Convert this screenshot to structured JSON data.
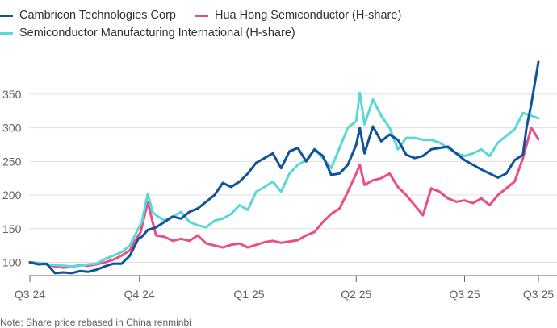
{
  "chart_data": {
    "type": "line",
    "title": "",
    "xlabel": "",
    "ylabel": "",
    "ylim": [
      80,
      400
    ],
    "y_ticks": [
      100,
      150,
      200,
      250,
      300,
      350
    ],
    "x_ticks": [
      "Q3 24",
      "Q4 24",
      "Q1 25",
      "Q2 25",
      "Q3 25",
      "Q3 25"
    ],
    "x_range": [
      "2024-07-01",
      "2025-09-01"
    ],
    "grid": true,
    "legend_placement": "top-left",
    "series": [
      {
        "name": "Cambricon Technologies Corp",
        "color": "#0f5499",
        "points": [
          [
            "2024-07-01",
            100
          ],
          [
            "2024-07-08",
            97
          ],
          [
            "2024-07-15",
            98
          ],
          [
            "2024-07-22",
            84
          ],
          [
            "2024-07-29",
            85
          ],
          [
            "2024-08-05",
            84
          ],
          [
            "2024-08-12",
            87
          ],
          [
            "2024-08-19",
            86
          ],
          [
            "2024-08-26",
            89
          ],
          [
            "2024-09-02",
            94
          ],
          [
            "2024-09-09",
            98
          ],
          [
            "2024-09-16",
            98
          ],
          [
            "2024-09-23",
            110
          ],
          [
            "2024-09-30",
            135
          ],
          [
            "2024-10-03",
            138
          ],
          [
            "2024-10-08",
            148
          ],
          [
            "2024-10-15",
            152
          ],
          [
            "2024-10-22",
            160
          ],
          [
            "2024-10-29",
            168
          ],
          [
            "2024-11-05",
            165
          ],
          [
            "2024-11-12",
            175
          ],
          [
            "2024-11-19",
            180
          ],
          [
            "2024-11-26",
            190
          ],
          [
            "2024-12-03",
            200
          ],
          [
            "2024-12-10",
            218
          ],
          [
            "2024-12-17",
            212
          ],
          [
            "2024-12-24",
            220
          ],
          [
            "2024-12-31",
            232
          ],
          [
            "2025-01-07",
            248
          ],
          [
            "2025-01-14",
            255
          ],
          [
            "2025-01-21",
            262
          ],
          [
            "2025-01-28",
            240
          ],
          [
            "2025-02-04",
            265
          ],
          [
            "2025-02-11",
            270
          ],
          [
            "2025-02-18",
            250
          ],
          [
            "2025-02-25",
            268
          ],
          [
            "2025-03-04",
            258
          ],
          [
            "2025-03-11",
            230
          ],
          [
            "2025-03-18",
            232
          ],
          [
            "2025-03-25",
            245
          ],
          [
            "2025-04-01",
            275
          ],
          [
            "2025-04-04",
            300
          ],
          [
            "2025-04-08",
            262
          ],
          [
            "2025-04-15",
            302
          ],
          [
            "2025-04-22",
            280
          ],
          [
            "2025-04-29",
            290
          ],
          [
            "2025-05-06",
            282
          ],
          [
            "2025-05-13",
            260
          ],
          [
            "2025-05-20",
            255
          ],
          [
            "2025-05-27",
            258
          ],
          [
            "2025-06-03",
            268
          ],
          [
            "2025-06-10",
            270
          ],
          [
            "2025-06-17",
            272
          ],
          [
            "2025-06-24",
            262
          ],
          [
            "2025-07-01",
            252
          ],
          [
            "2025-07-08",
            245
          ],
          [
            "2025-07-15",
            238
          ],
          [
            "2025-07-22",
            232
          ],
          [
            "2025-07-29",
            226
          ],
          [
            "2025-08-05",
            232
          ],
          [
            "2025-08-12",
            252
          ],
          [
            "2025-08-19",
            260
          ],
          [
            "2025-08-22",
            300
          ],
          [
            "2025-08-26",
            335
          ],
          [
            "2025-09-01",
            398
          ]
        ]
      },
      {
        "name": "Hua Hong Semiconductor (H-share)",
        "color": "#e94e87",
        "points": [
          [
            "2024-07-01",
            100
          ],
          [
            "2024-07-08",
            99
          ],
          [
            "2024-07-15",
            97
          ],
          [
            "2024-07-22",
            94
          ],
          [
            "2024-07-29",
            92
          ],
          [
            "2024-08-05",
            93
          ],
          [
            "2024-08-12",
            96
          ],
          [
            "2024-08-19",
            95
          ],
          [
            "2024-08-26",
            97
          ],
          [
            "2024-09-02",
            100
          ],
          [
            "2024-09-09",
            104
          ],
          [
            "2024-09-16",
            110
          ],
          [
            "2024-09-23",
            118
          ],
          [
            "2024-09-26",
            128
          ],
          [
            "2024-10-02",
            145
          ],
          [
            "2024-10-08",
            190
          ],
          [
            "2024-10-12",
            160
          ],
          [
            "2024-10-15",
            140
          ],
          [
            "2024-10-22",
            138
          ],
          [
            "2024-10-29",
            132
          ],
          [
            "2024-11-05",
            135
          ],
          [
            "2024-11-12",
            132
          ],
          [
            "2024-11-19",
            140
          ],
          [
            "2024-11-26",
            128
          ],
          [
            "2024-12-03",
            125
          ],
          [
            "2024-12-10",
            122
          ],
          [
            "2024-12-17",
            126
          ],
          [
            "2024-12-24",
            128
          ],
          [
            "2024-12-31",
            122
          ],
          [
            "2025-01-07",
            126
          ],
          [
            "2025-01-14",
            130
          ],
          [
            "2025-01-21",
            132
          ],
          [
            "2025-01-28",
            129
          ],
          [
            "2025-02-04",
            131
          ],
          [
            "2025-02-11",
            133
          ],
          [
            "2025-02-18",
            140
          ],
          [
            "2025-02-25",
            145
          ],
          [
            "2025-03-04",
            160
          ],
          [
            "2025-03-11",
            172
          ],
          [
            "2025-03-18",
            180
          ],
          [
            "2025-03-25",
            205
          ],
          [
            "2025-04-01",
            232
          ],
          [
            "2025-04-04",
            245
          ],
          [
            "2025-04-08",
            215
          ],
          [
            "2025-04-15",
            222
          ],
          [
            "2025-04-22",
            225
          ],
          [
            "2025-04-29",
            232
          ],
          [
            "2025-05-06",
            212
          ],
          [
            "2025-05-13",
            200
          ],
          [
            "2025-05-20",
            185
          ],
          [
            "2025-05-27",
            170
          ],
          [
            "2025-06-03",
            210
          ],
          [
            "2025-06-10",
            205
          ],
          [
            "2025-06-17",
            195
          ],
          [
            "2025-06-24",
            190
          ],
          [
            "2025-07-01",
            192
          ],
          [
            "2025-07-08",
            188
          ],
          [
            "2025-07-15",
            195
          ],
          [
            "2025-07-22",
            185
          ],
          [
            "2025-07-29",
            200
          ],
          [
            "2025-08-05",
            210
          ],
          [
            "2025-08-12",
            220
          ],
          [
            "2025-08-19",
            255
          ],
          [
            "2025-08-26",
            300
          ],
          [
            "2025-09-01",
            283
          ]
        ]
      },
      {
        "name": "Semiconductor Manufacturing International (H-share)",
        "color": "#5ad7d9",
        "points": [
          [
            "2024-07-01",
            100
          ],
          [
            "2024-07-08",
            99
          ],
          [
            "2024-07-15",
            97
          ],
          [
            "2024-07-22",
            96
          ],
          [
            "2024-07-29",
            95
          ],
          [
            "2024-08-05",
            94
          ],
          [
            "2024-08-12",
            95
          ],
          [
            "2024-08-19",
            97
          ],
          [
            "2024-08-26",
            98
          ],
          [
            "2024-09-02",
            105
          ],
          [
            "2024-09-09",
            110
          ],
          [
            "2024-09-16",
            115
          ],
          [
            "2024-09-23",
            125
          ],
          [
            "2024-09-30",
            150
          ],
          [
            "2024-10-03",
            160
          ],
          [
            "2024-10-08",
            202
          ],
          [
            "2024-10-12",
            175
          ],
          [
            "2024-10-15",
            170
          ],
          [
            "2024-10-22",
            162
          ],
          [
            "2024-10-29",
            168
          ],
          [
            "2024-11-05",
            175
          ],
          [
            "2024-11-12",
            160
          ],
          [
            "2024-11-19",
            155
          ],
          [
            "2024-11-26",
            152
          ],
          [
            "2024-12-03",
            162
          ],
          [
            "2024-12-10",
            165
          ],
          [
            "2024-12-17",
            172
          ],
          [
            "2024-12-24",
            185
          ],
          [
            "2024-12-31",
            178
          ],
          [
            "2025-01-07",
            205
          ],
          [
            "2025-01-14",
            212
          ],
          [
            "2025-01-21",
            220
          ],
          [
            "2025-01-28",
            205
          ],
          [
            "2025-02-04",
            232
          ],
          [
            "2025-02-11",
            245
          ],
          [
            "2025-02-18",
            252
          ],
          [
            "2025-02-25",
            268
          ],
          [
            "2025-03-04",
            255
          ],
          [
            "2025-03-11",
            240
          ],
          [
            "2025-03-18",
            270
          ],
          [
            "2025-03-25",
            300
          ],
          [
            "2025-04-01",
            310
          ],
          [
            "2025-04-04",
            352
          ],
          [
            "2025-04-08",
            305
          ],
          [
            "2025-04-15",
            342
          ],
          [
            "2025-04-22",
            318
          ],
          [
            "2025-04-29",
            300
          ],
          [
            "2025-05-06",
            268
          ],
          [
            "2025-05-13",
            285
          ],
          [
            "2025-05-20",
            285
          ],
          [
            "2025-05-27",
            282
          ],
          [
            "2025-06-03",
            282
          ],
          [
            "2025-06-10",
            278
          ],
          [
            "2025-06-17",
            270
          ],
          [
            "2025-06-24",
            262
          ],
          [
            "2025-07-01",
            258
          ],
          [
            "2025-07-08",
            262
          ],
          [
            "2025-07-15",
            268
          ],
          [
            "2025-07-22",
            258
          ],
          [
            "2025-07-29",
            278
          ],
          [
            "2025-08-05",
            288
          ],
          [
            "2025-08-12",
            298
          ],
          [
            "2025-08-19",
            322
          ],
          [
            "2025-08-26",
            318
          ],
          [
            "2025-09-01",
            314
          ]
        ]
      }
    ]
  },
  "note": "Note: Share price rebased in China renminbi"
}
